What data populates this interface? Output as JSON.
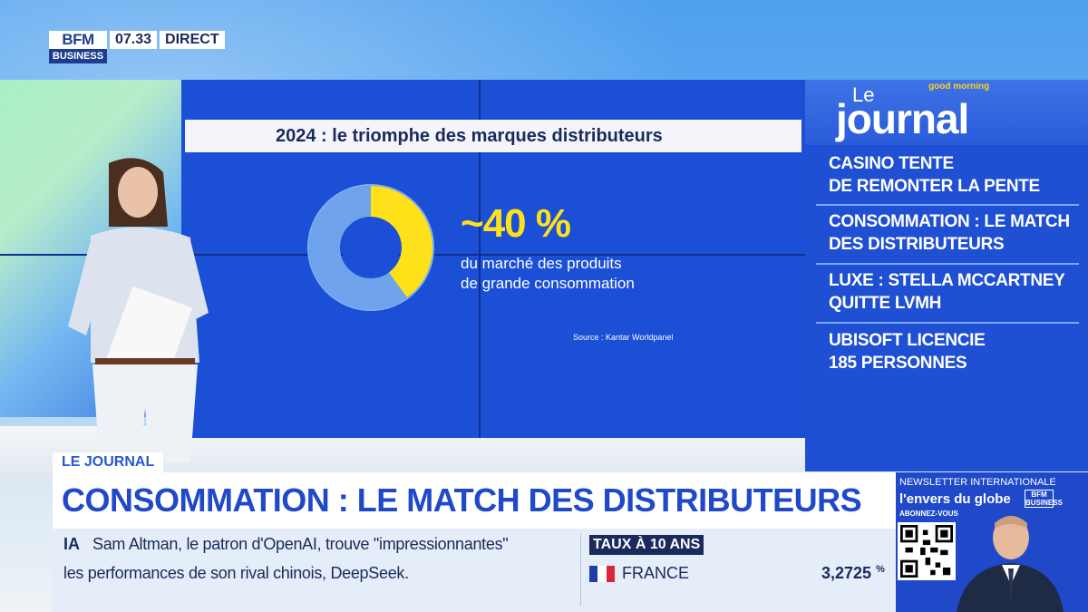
{
  "channel": {
    "logo_top": "BFM",
    "logo_bottom": "BUSINESS",
    "time": "07.33",
    "status": "DIRECT"
  },
  "slide": {
    "title": "2024 : le triomphe des marques distributeurs",
    "percent": "~40 %",
    "description_line1": "du marché des produits",
    "description_line2": "de grande consommation",
    "source": "Source : Kantar Worldpanel",
    "donut_share": 0.4
  },
  "panel": {
    "le": "Le",
    "journal": "journal",
    "good_morning": "good morning",
    "headlines": [
      {
        "line1": "Casino tente",
        "line2": "de remonter la pente"
      },
      {
        "line1": "Consommation : le match",
        "line2": "des distributeurs"
      },
      {
        "line1": "Luxe : Stella McCartney",
        "line2": "quitte LVMH"
      },
      {
        "line1": "Ubisoft licencie",
        "line2": "185 personnes"
      }
    ]
  },
  "lower_third": {
    "tag": "LE JOURNAL",
    "headline": "CONSOMMATION : LE MATCH DES DISTRIBUTEURS"
  },
  "ticker": {
    "label": "IA",
    "line1": "Sam Altman, le patron d'OpenAI, trouve \"impressionnantes\"",
    "line2": "les performances de son rival chinois, DeepSeek."
  },
  "rates": {
    "label": "TAUX À 10 ANS",
    "country": "FRANCE",
    "value": "3,2725",
    "unit": "%"
  },
  "newsletter": {
    "label": "NEWSLETTER INTERNATIONALE",
    "title": "l'envers du globe",
    "subscribe": "ABONNEZ-VOUS",
    "brand": "BFM BUSINESS"
  },
  "colors": {
    "wall_blue": "#1a4fd6",
    "accent_yellow": "#ffe11a",
    "donut_light": "#7fb0f2",
    "banner_blue": "#1f49c9"
  }
}
